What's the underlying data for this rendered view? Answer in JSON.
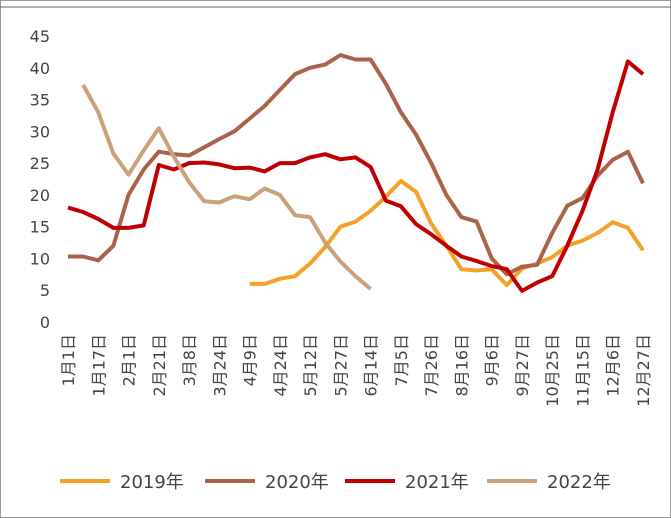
{
  "chart_data": {
    "type": "line",
    "categories": [
      "1月1日",
      null,
      "1月17日",
      null,
      "2月1日",
      null,
      "2月21日",
      null,
      "3月8日",
      null,
      "3月24日",
      null,
      "4月9日",
      null,
      "4月24日",
      null,
      "5月12日",
      null,
      "5月27日",
      null,
      "6月14日",
      null,
      "7月5日",
      null,
      "7月26日",
      null,
      "8月16日",
      null,
      "9月6日",
      null,
      "9月27日",
      null,
      "10月25日",
      null,
      "11月15日",
      null,
      "12月6日",
      null,
      "12月27日"
    ],
    "series": [
      {
        "name": "2019年",
        "color": "#f4a127",
        "values": [
          null,
          null,
          null,
          null,
          null,
          null,
          null,
          null,
          null,
          null,
          null,
          null,
          6,
          6,
          6.8,
          7.2,
          9.2,
          11.8,
          15,
          15.8,
          17.5,
          19.7,
          22.2,
          20.5,
          15.5,
          12,
          8.3,
          8.1,
          8.3,
          5.8,
          8.4,
          9.2,
          10.2,
          12,
          12.8,
          14,
          15.7,
          14.8,
          11.3
        ]
      },
      {
        "name": "2020年",
        "color": "#a9634a",
        "values": [
          10.3,
          10.3,
          9.7,
          12,
          20,
          24,
          26.8,
          26.4,
          26.2,
          27.5,
          28.8,
          30,
          32,
          34,
          36.5,
          39,
          40,
          40.5,
          42,
          41.3,
          41.3,
          37.5,
          33,
          29.5,
          25,
          20,
          16.5,
          15.8,
          10,
          7.5,
          8.7,
          9,
          14,
          18.3,
          19.5,
          23,
          25.5,
          26.8,
          21.8
        ]
      },
      {
        "name": "2021年",
        "color": "#c00000",
        "values": [
          18,
          17.3,
          16.2,
          14.8,
          14.8,
          15.2,
          24.7,
          24,
          25,
          25.1,
          24.8,
          24.2,
          24.3,
          23.7,
          25,
          25,
          25.9,
          26.4,
          25.6,
          25.9,
          24.4,
          19.1,
          18.2,
          15.4,
          13.8,
          12,
          10.3,
          9.6,
          8.8,
          8.3,
          4.9,
          6.2,
          7.2,
          12,
          17.5,
          24,
          33,
          41,
          39
        ]
      },
      {
        "name": "2022年",
        "color": "#c9a27a",
        "values": [
          null,
          37.3,
          33,
          26.5,
          23.2,
          27,
          30.5,
          26,
          22,
          19,
          18.8,
          19.8,
          19.3,
          21,
          20,
          16.8,
          16.5,
          12.5,
          9.5,
          7.2,
          5.2,
          null,
          null,
          null,
          null,
          null,
          null,
          null,
          null,
          null,
          null,
          null,
          null,
          null,
          null,
          null,
          null,
          null,
          null
        ]
      }
    ],
    "ylim": [
      0,
      45
    ],
    "yticks": [
      0,
      5,
      10,
      15,
      20,
      25,
      30,
      35,
      40,
      45
    ]
  }
}
